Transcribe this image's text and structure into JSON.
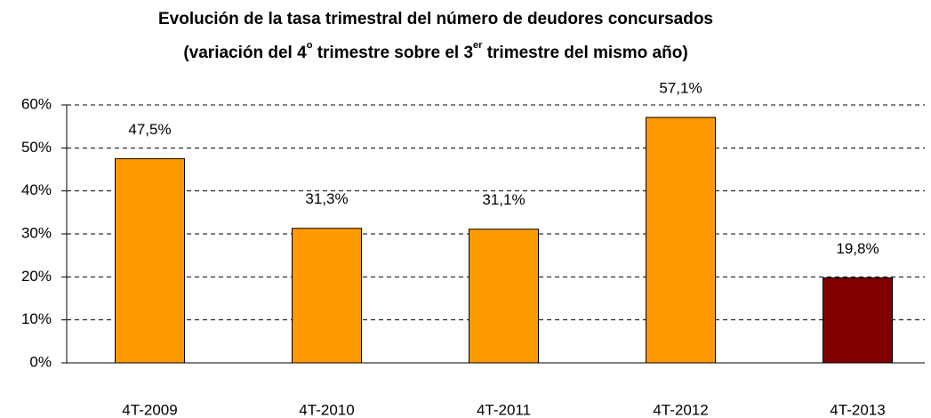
{
  "chart_data": {
    "type": "bar",
    "title": "Evolución  de la tasa trimestral del número de deudores concursados",
    "subtitle_parts": [
      "(variación del 4",
      "o",
      " trimestre sobre el 3",
      "er",
      " trimestre del mismo año)"
    ],
    "categories": [
      "4T-2009",
      "4T-2010",
      "4T-2011",
      "4T-2012",
      "4T-2013"
    ],
    "values": [
      47.5,
      31.3,
      31.1,
      57.1,
      19.8
    ],
    "value_labels": [
      "47,5%",
      "31,3%",
      "31,1%",
      "57,1%",
      "19,8%"
    ],
    "colors": [
      "#FF9900",
      "#FF9900",
      "#FF9900",
      "#FF9900",
      "#800000"
    ],
    "ylim": [
      0,
      60
    ],
    "yticks": [
      {
        "value": 0,
        "label": "0%"
      },
      {
        "value": 10,
        "label": "10%"
      },
      {
        "value": 20,
        "label": "20%"
      },
      {
        "value": 30,
        "label": "30%"
      },
      {
        "value": 40,
        "label": "40%"
      },
      {
        "value": 50,
        "label": "50%"
      },
      {
        "value": 60,
        "label": "60%"
      }
    ],
    "grid": true
  }
}
